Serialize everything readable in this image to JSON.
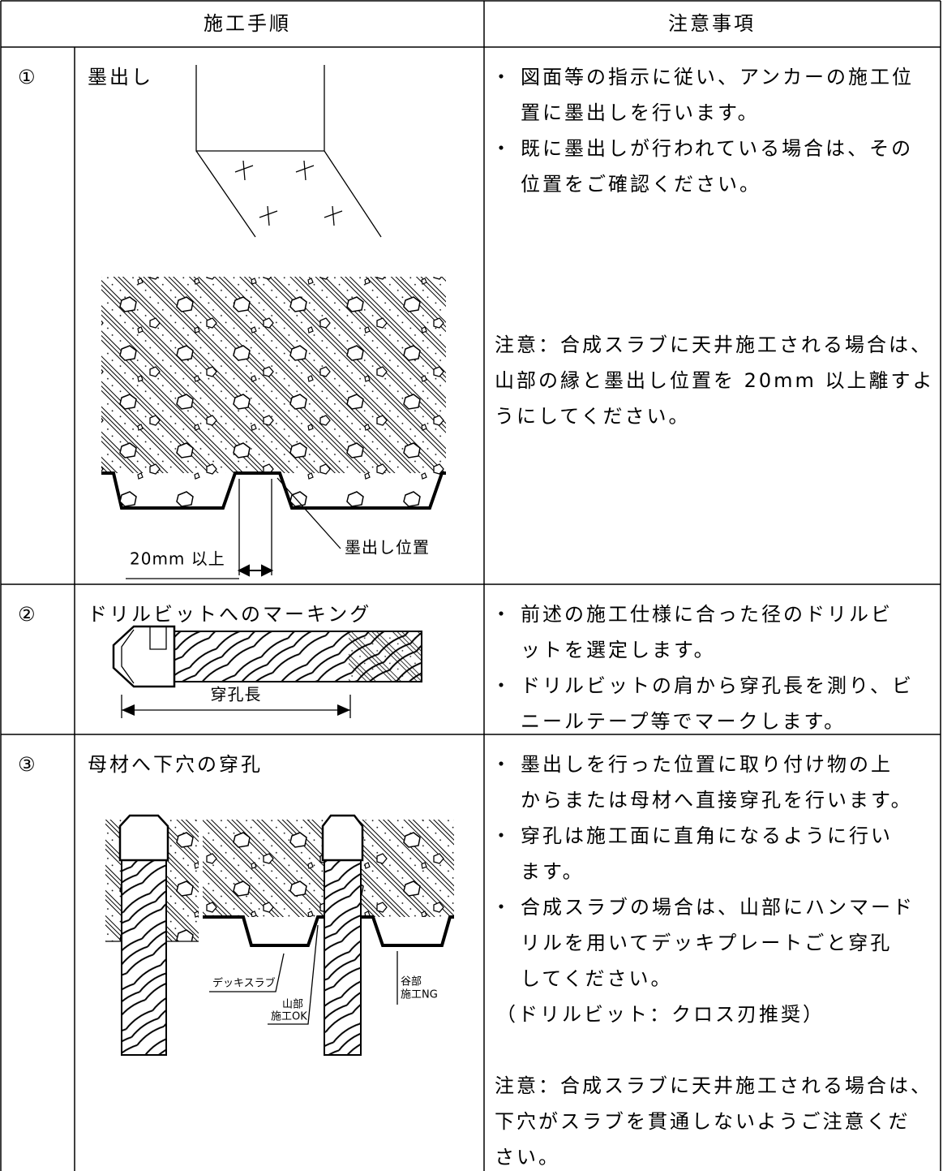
{
  "table": {
    "header": {
      "procedure": "施工手順",
      "notes": "注意事項"
    },
    "rows": [
      {
        "number": "①",
        "title": "墨出し",
        "figure_labels": {
          "dimension": "20mm 以上",
          "marking_position": "墨出し位置"
        },
        "notes": [
          {
            "bullet": "・",
            "lines": [
              "図面等の指示に従い、アンカーの施工位",
              "置に墨出しを行います。"
            ]
          },
          {
            "bullet": "・",
            "lines": [
              "既に墨出しが行われている場合は、その",
              "位置をご確認ください。"
            ]
          }
        ],
        "caution": [
          "注意：合成スラブに天井施工される場合は、",
          "山部の縁と墨出し位置を 20mm 以上離すよ",
          "うにしてください。"
        ]
      },
      {
        "number": "②",
        "title": "ドリルビットへのマーキング",
        "figure_labels": {
          "drill_length": "穿孔長"
        },
        "notes": [
          {
            "bullet": "・",
            "lines": [
              "前述の施工仕様に合った径のドリルビ",
              "ットを選定します。"
            ]
          },
          {
            "bullet": "・",
            "lines": [
              "ドリルビットの肩から穿孔長を測り、ビ",
              "ニールテープ等でマークします。"
            ]
          }
        ]
      },
      {
        "number": "③",
        "title": "母材へ下穴の穿孔",
        "figure_labels": {
          "deck_slab": "デッキスラブ",
          "ridge": "山部",
          "ridge_ok": "施工OK",
          "valley": "谷部",
          "valley_ng": "施工NG"
        },
        "notes": [
          {
            "bullet": "・",
            "lines": [
              "墨出しを行った位置に取り付け物の上",
              "からまたは母材へ直接穿孔を行います。"
            ]
          },
          {
            "bullet": "・",
            "lines": [
              "穿孔は施工面に直角になるように行い",
              "ます。"
            ]
          },
          {
            "bullet": "・",
            "lines": [
              "合成スラブの場合は、山部にハンマード",
              "リルを用いてデッキプレートごと穿孔",
              "してください。"
            ]
          }
        ],
        "remark": "（ドリルビット：クロス刃推奨）",
        "caution": [
          "注意：合成スラブに天井施工される場合は、",
          "下穴がスラブを貫通しないようご注意くだ",
          "さい。"
        ]
      }
    ]
  }
}
